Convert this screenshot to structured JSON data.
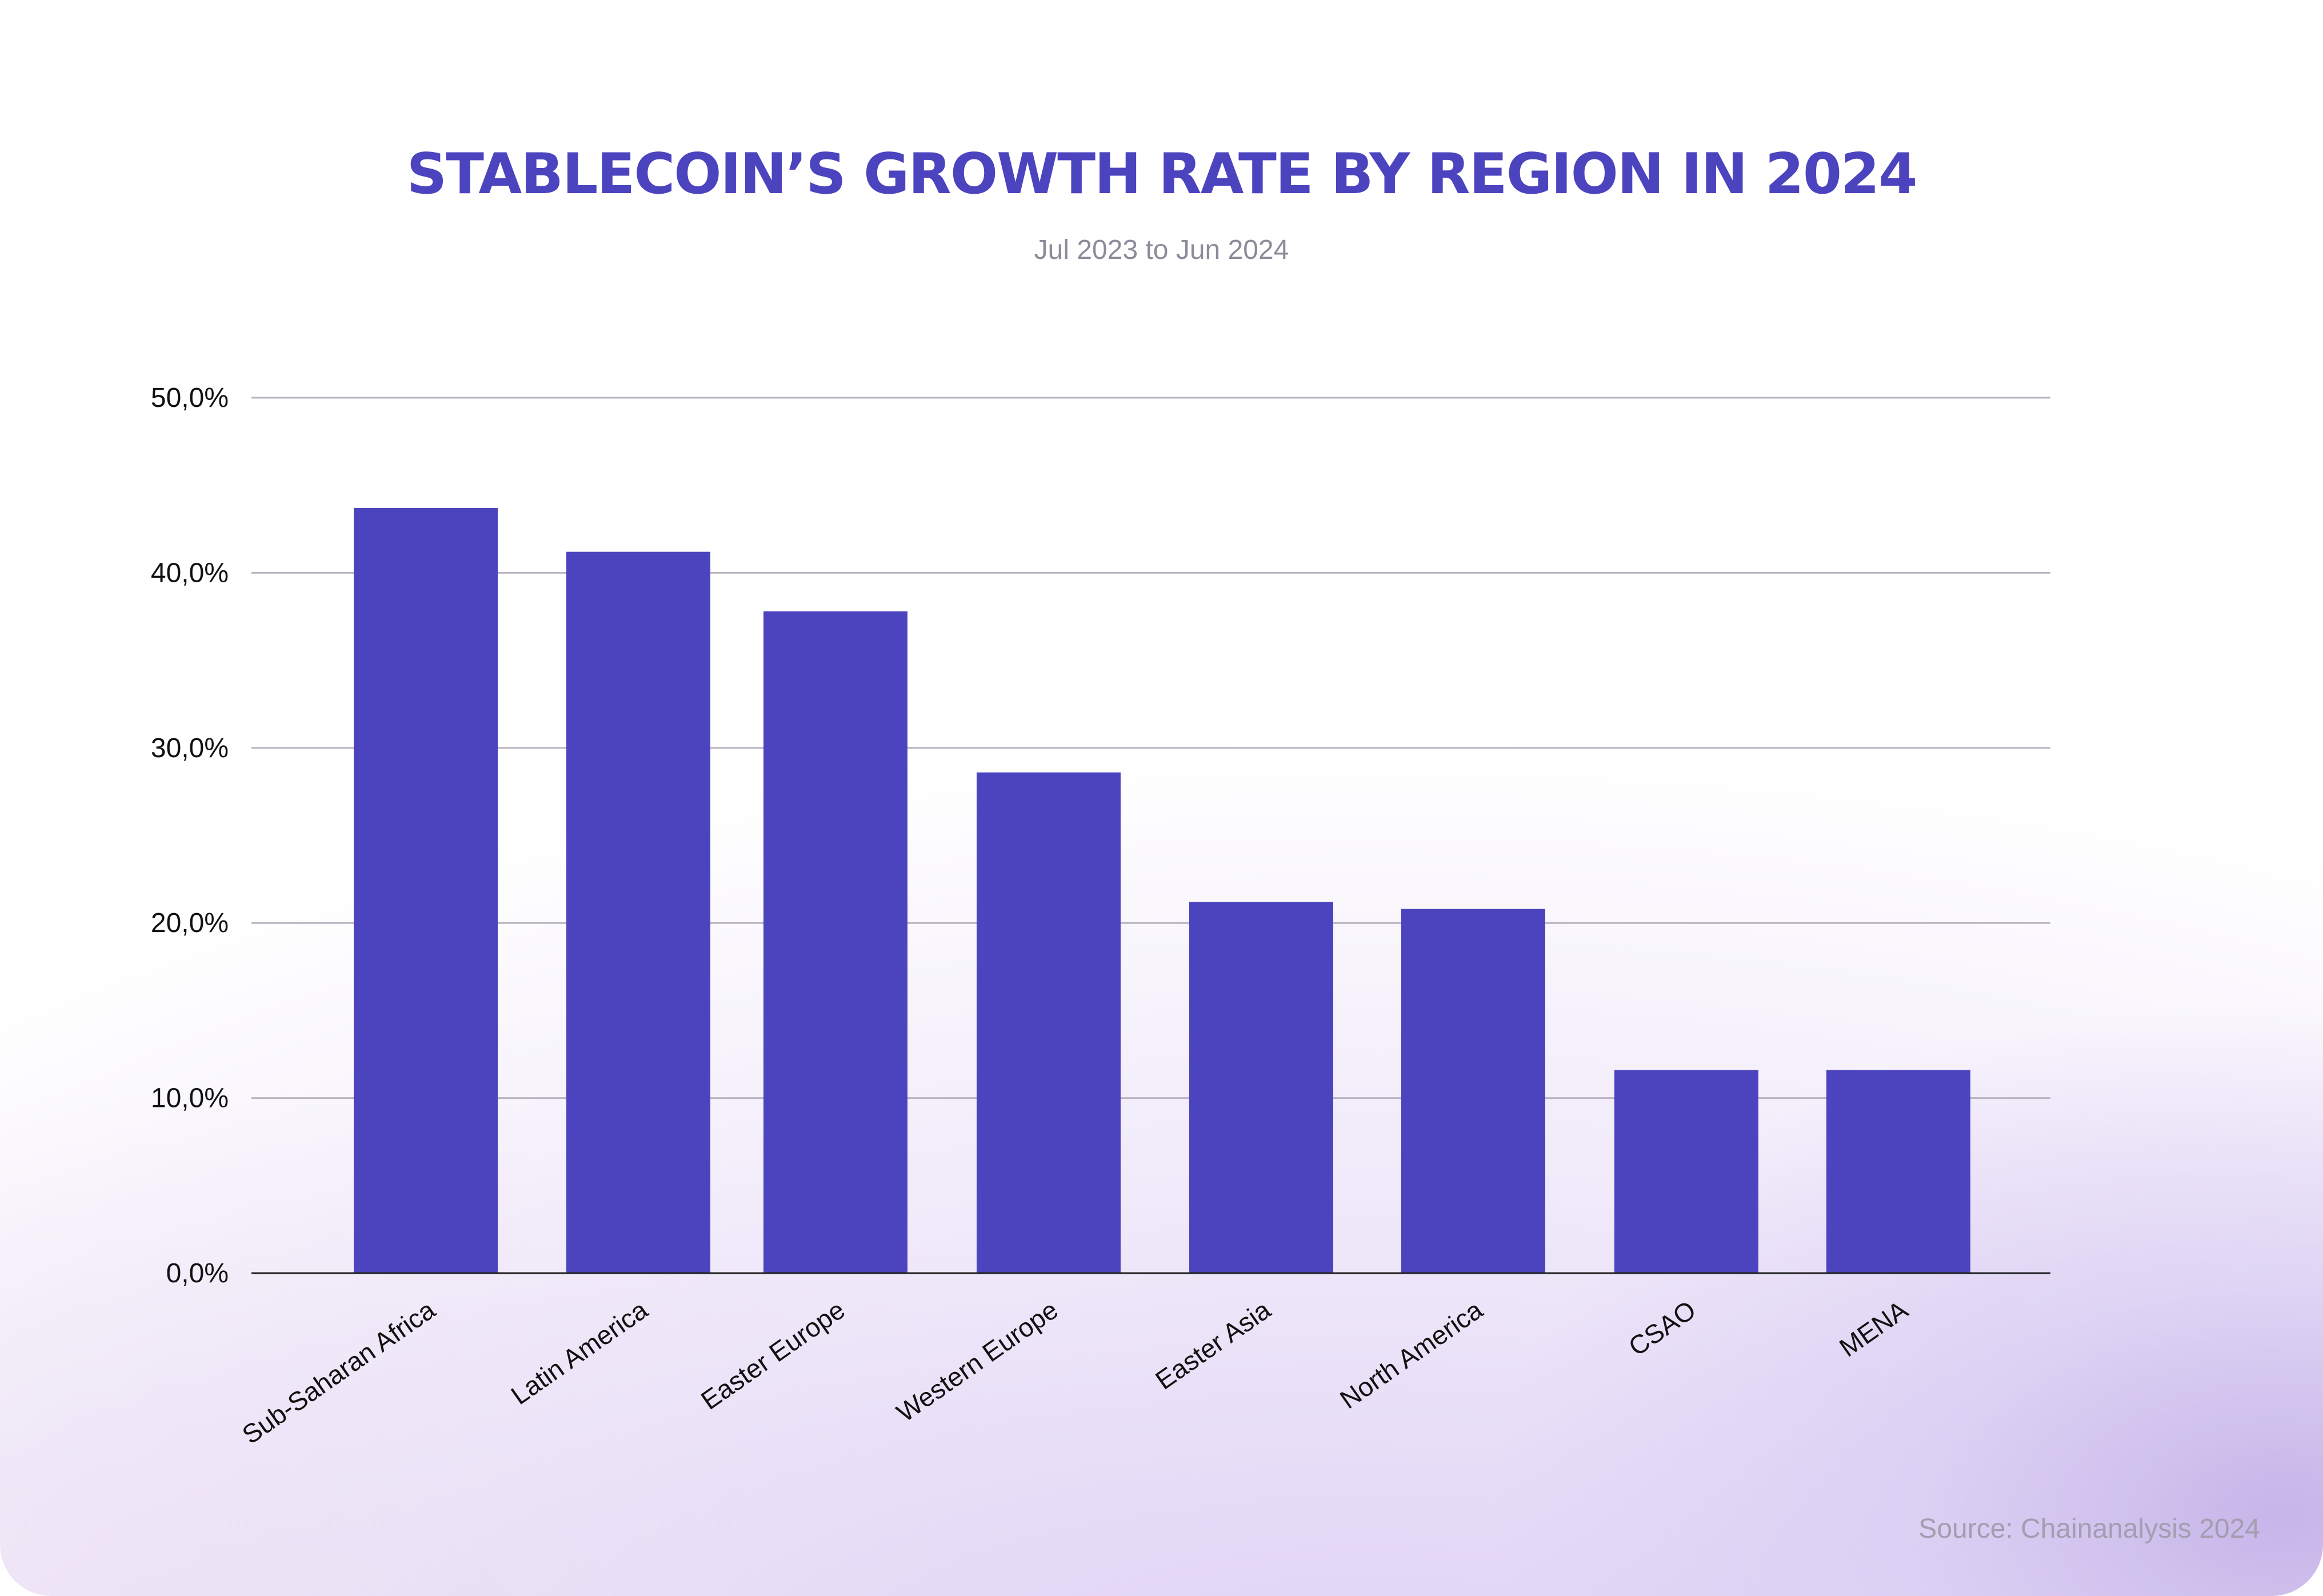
{
  "header": {
    "title": "STABLECOIN’S GROWTH RATE BY REGION IN 2024",
    "subtitle": "Jul 2023 to Jun 2024"
  },
  "footer": {
    "source": "Source: Chainanalysis 2024"
  },
  "colors": {
    "bar": "#4c44be",
    "title": "#4c44be",
    "grid": "#b8b4c0",
    "axis": "#222222"
  },
  "chart_data": {
    "type": "bar",
    "title": "STABLECOIN’S GROWTH RATE BY REGION IN 2024",
    "subtitle": "Jul 2023 to Jun 2024",
    "xlabel": "",
    "ylabel": "",
    "categories": [
      "Sub-Saharan Africa",
      "Latin America",
      "Easter Europe",
      "Western Europe",
      "Easter Asia",
      "North America",
      "CSAO",
      "MENA"
    ],
    "values": [
      43.7,
      41.2,
      37.8,
      28.6,
      21.2,
      20.8,
      11.6,
      11.6
    ],
    "ylim": [
      0,
      50
    ],
    "yticks": [
      0,
      10,
      20,
      30,
      40,
      50
    ],
    "ytick_labels": [
      "0,0%",
      "10,0%",
      "20,0%",
      "30,0%",
      "40,0%",
      "50,0%"
    ],
    "grid": true,
    "legend": "none"
  }
}
